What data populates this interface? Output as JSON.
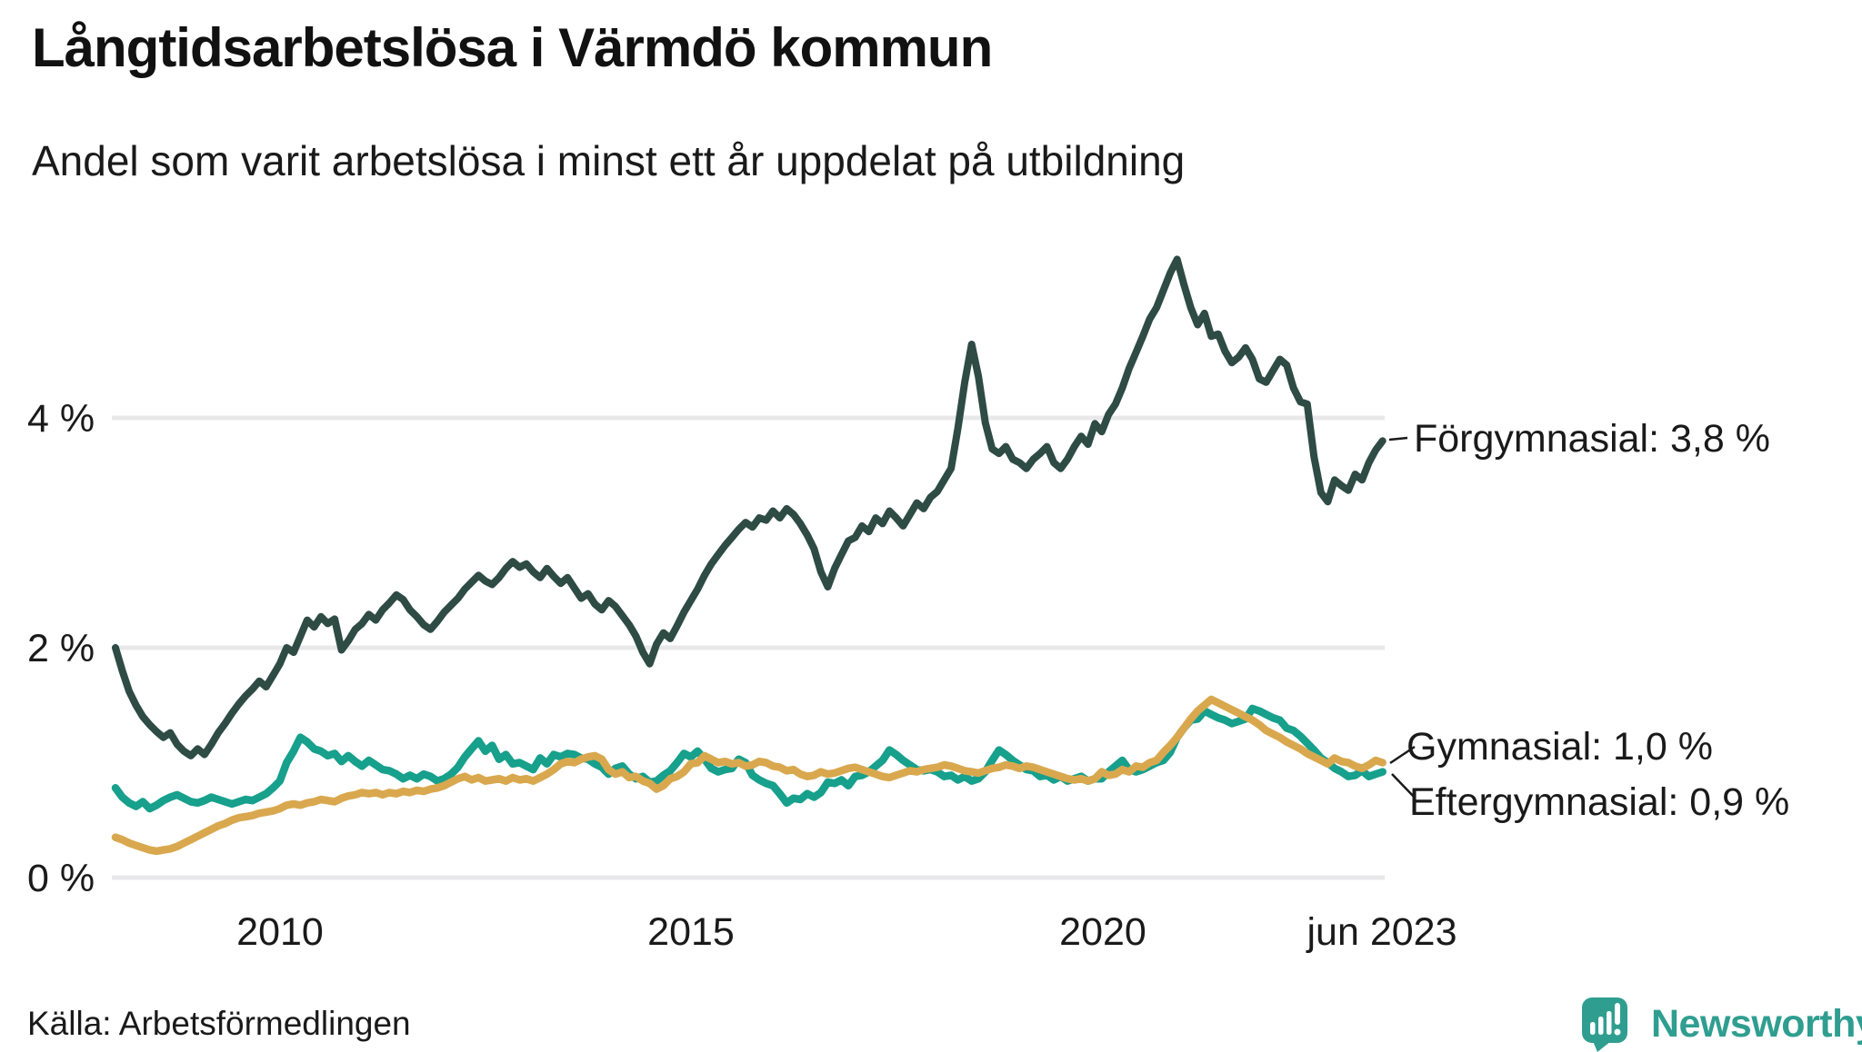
{
  "title": "Långtidsarbetslösa i Värmdö kommun",
  "subtitle": "Andel som varit arbetslösa i minst ett år uppdelat på utbildning",
  "source": "Källa: Arbetsförmedlingen",
  "branding": {
    "name": "Newsworthy",
    "logo_color": "#2F9E90",
    "logo_icon": "speech-bubble-bar-chart-icon"
  },
  "colors": {
    "grid": "#e8e8ea",
    "text": "#1a1a1a",
    "forgymnasial": "#2E4B44",
    "gymnasial": "#D9A84E",
    "eftergymnasial": "#17A08C"
  },
  "chart_data": {
    "type": "line",
    "title": "Långtidsarbetslösa i Värmdö kommun",
    "subtitle": "Andel som varit arbetslösa i minst ett år uppdelat på utbildning",
    "unit": "%",
    "frequency": "monthly",
    "x_start": "2008-01",
    "x_end": "2023-06",
    "x_ticks": [
      "2010",
      "2015",
      "2020",
      "jun 2023"
    ],
    "y_ticks": [
      "0 %",
      "2 %",
      "4 %"
    ],
    "y_tick_values": [
      0,
      2,
      4
    ],
    "ylim": [
      0,
      5.6
    ],
    "grid": true,
    "legend_position": "end-of-line-labels",
    "series": [
      {
        "name": "Förgymnasial",
        "color": "#2E4B44",
        "end_label": "Förgymnasial: 3,8 %",
        "end_value": 3.8,
        "values": [
          2.0,
          1.8,
          1.62,
          1.5,
          1.4,
          1.33,
          1.27,
          1.22,
          1.26,
          1.16,
          1.1,
          1.06,
          1.12,
          1.07,
          1.16,
          1.26,
          1.34,
          1.43,
          1.51,
          1.58,
          1.64,
          1.71,
          1.66,
          1.76,
          1.86,
          2.0,
          1.96,
          2.1,
          2.24,
          2.18,
          2.27,
          2.21,
          2.25,
          1.98,
          2.06,
          2.16,
          2.21,
          2.29,
          2.24,
          2.33,
          2.39,
          2.46,
          2.42,
          2.33,
          2.27,
          2.2,
          2.16,
          2.23,
          2.31,
          2.37,
          2.43,
          2.51,
          2.57,
          2.63,
          2.58,
          2.55,
          2.61,
          2.69,
          2.75,
          2.7,
          2.73,
          2.66,
          2.61,
          2.69,
          2.62,
          2.56,
          2.61,
          2.52,
          2.43,
          2.47,
          2.38,
          2.33,
          2.41,
          2.36,
          2.28,
          2.2,
          2.1,
          1.96,
          1.86,
          2.03,
          2.13,
          2.08,
          2.19,
          2.31,
          2.41,
          2.51,
          2.63,
          2.73,
          2.81,
          2.89,
          2.96,
          3.03,
          3.09,
          3.05,
          3.13,
          3.11,
          3.19,
          3.13,
          3.21,
          3.16,
          3.08,
          2.98,
          2.86,
          2.66,
          2.53,
          2.69,
          2.81,
          2.93,
          2.96,
          3.06,
          3.01,
          3.13,
          3.08,
          3.19,
          3.13,
          3.06,
          3.16,
          3.26,
          3.21,
          3.31,
          3.36,
          3.46,
          3.56,
          3.91,
          4.31,
          4.64,
          4.36,
          3.96,
          3.73,
          3.69,
          3.75,
          3.64,
          3.61,
          3.56,
          3.64,
          3.69,
          3.75,
          3.61,
          3.56,
          3.64,
          3.75,
          3.84,
          3.77,
          3.95,
          3.88,
          4.03,
          4.12,
          4.26,
          4.43,
          4.57,
          4.71,
          4.86,
          4.96,
          5.11,
          5.26,
          5.38,
          5.16,
          4.96,
          4.81,
          4.91,
          4.71,
          4.73,
          4.58,
          4.48,
          4.53,
          4.61,
          4.51,
          4.34,
          4.31,
          4.41,
          4.51,
          4.46,
          4.26,
          4.14,
          4.12,
          3.66,
          3.35,
          3.27,
          3.46,
          3.41,
          3.37,
          3.51,
          3.46,
          3.61,
          3.72,
          3.8
        ]
      },
      {
        "name": "Gymnasial",
        "color": "#D9A84E",
        "end_label": "Gymnasial: 1,0 %",
        "end_value": 1.0,
        "values": [
          0.35,
          0.33,
          0.3,
          0.28,
          0.26,
          0.24,
          0.23,
          0.24,
          0.25,
          0.27,
          0.3,
          0.33,
          0.36,
          0.39,
          0.42,
          0.45,
          0.47,
          0.5,
          0.52,
          0.53,
          0.54,
          0.56,
          0.57,
          0.58,
          0.6,
          0.63,
          0.64,
          0.63,
          0.65,
          0.66,
          0.68,
          0.67,
          0.66,
          0.69,
          0.71,
          0.72,
          0.74,
          0.73,
          0.74,
          0.72,
          0.74,
          0.73,
          0.75,
          0.74,
          0.76,
          0.75,
          0.77,
          0.78,
          0.8,
          0.83,
          0.86,
          0.88,
          0.85,
          0.87,
          0.84,
          0.85,
          0.86,
          0.84,
          0.87,
          0.85,
          0.86,
          0.84,
          0.87,
          0.9,
          0.94,
          0.99,
          1.01,
          1.0,
          1.03,
          1.05,
          1.06,
          1.03,
          0.94,
          0.9,
          0.92,
          0.87,
          0.88,
          0.84,
          0.82,
          0.77,
          0.8,
          0.86,
          0.88,
          0.92,
          0.99,
          1.0,
          1.06,
          1.03,
          1.0,
          1.01,
          0.99,
          1.0,
          0.97,
          0.98,
          1.01,
          1.0,
          0.97,
          0.96,
          0.93,
          0.94,
          0.9,
          0.88,
          0.89,
          0.92,
          0.9,
          0.91,
          0.93,
          0.95,
          0.96,
          0.94,
          0.92,
          0.9,
          0.88,
          0.87,
          0.89,
          0.91,
          0.93,
          0.92,
          0.94,
          0.95,
          0.96,
          0.98,
          0.97,
          0.95,
          0.93,
          0.92,
          0.91,
          0.93,
          0.95,
          0.96,
          0.98,
          0.97,
          0.95,
          0.97,
          0.96,
          0.94,
          0.92,
          0.9,
          0.88,
          0.86,
          0.85,
          0.86,
          0.84,
          0.86,
          0.92,
          0.89,
          0.9,
          0.94,
          0.92,
          0.97,
          0.96,
          1.0,
          1.02,
          1.09,
          1.15,
          1.22,
          1.3,
          1.38,
          1.45,
          1.5,
          1.55,
          1.52,
          1.49,
          1.46,
          1.43,
          1.4,
          1.37,
          1.33,
          1.28,
          1.25,
          1.22,
          1.18,
          1.15,
          1.12,
          1.08,
          1.05,
          1.02,
          0.99,
          1.04,
          1.01,
          1.0,
          0.97,
          0.95,
          0.98,
          1.02,
          1.0
        ]
      },
      {
        "name": "Eftergymnasial",
        "color": "#17A08C",
        "end_label": "Eftergymnasial: 0,9 %",
        "end_value": 0.9,
        "values": [
          0.78,
          0.7,
          0.65,
          0.62,
          0.66,
          0.6,
          0.63,
          0.67,
          0.7,
          0.72,
          0.69,
          0.66,
          0.65,
          0.67,
          0.7,
          0.68,
          0.66,
          0.64,
          0.66,
          0.68,
          0.67,
          0.7,
          0.73,
          0.78,
          0.84,
          1.0,
          1.1,
          1.22,
          1.18,
          1.12,
          1.1,
          1.06,
          1.08,
          1.01,
          1.06,
          1.01,
          0.97,
          1.02,
          0.98,
          0.94,
          0.93,
          0.9,
          0.86,
          0.89,
          0.86,
          0.9,
          0.88,
          0.84,
          0.86,
          0.9,
          0.96,
          1.05,
          1.12,
          1.19,
          1.1,
          1.15,
          1.03,
          1.07,
          0.99,
          1.0,
          0.97,
          0.94,
          1.04,
          0.99,
          1.07,
          1.05,
          1.08,
          1.07,
          1.04,
          1.03,
          0.99,
          0.96,
          0.9,
          0.95,
          0.97,
          0.9,
          0.86,
          0.88,
          0.83,
          0.84,
          0.89,
          0.93,
          1.0,
          1.08,
          1.05,
          1.1,
          1.03,
          0.95,
          0.92,
          0.94,
          0.95,
          1.03,
          1.0,
          0.89,
          0.85,
          0.82,
          0.8,
          0.73,
          0.65,
          0.69,
          0.68,
          0.73,
          0.7,
          0.74,
          0.83,
          0.82,
          0.85,
          0.8,
          0.88,
          0.89,
          0.92,
          0.97,
          1.02,
          1.11,
          1.07,
          1.02,
          0.98,
          0.94,
          0.93,
          0.94,
          0.92,
          0.88,
          0.89,
          0.85,
          0.88,
          0.84,
          0.86,
          0.92,
          1.02,
          1.11,
          1.07,
          1.02,
          0.98,
          0.94,
          0.93,
          0.88,
          0.89,
          0.85,
          0.88,
          0.84,
          0.86,
          0.88,
          0.84,
          0.86,
          0.86,
          0.92,
          0.97,
          1.02,
          0.94,
          0.92,
          0.94,
          0.97,
          1.0,
          1.02,
          1.09,
          1.22,
          1.3,
          1.37,
          1.38,
          1.45,
          1.42,
          1.39,
          1.37,
          1.34,
          1.36,
          1.38,
          1.47,
          1.45,
          1.42,
          1.39,
          1.37,
          1.3,
          1.28,
          1.23,
          1.17,
          1.11,
          1.04,
          1.0,
          0.95,
          0.92,
          0.88,
          0.89,
          0.93,
          0.88,
          0.9,
          0.92
        ]
      }
    ]
  }
}
